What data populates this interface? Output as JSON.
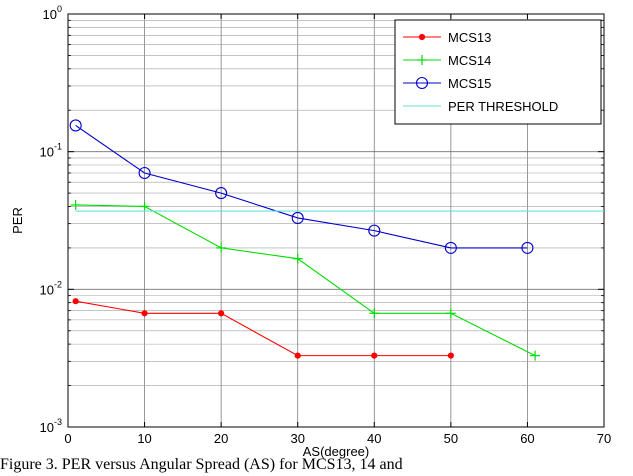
{
  "chart_data": {
    "type": "line",
    "xlabel": "AS(degree)",
    "ylabel": "PER",
    "xlim": [
      0,
      70
    ],
    "ylim": [
      0.001,
      1
    ],
    "yscale": "log",
    "grid": true,
    "legend_position": "top-right",
    "x_ticks": [
      "0",
      "10",
      "20",
      "30",
      "40",
      "50",
      "60",
      "70"
    ],
    "y_ticks": [
      {
        "base": "10",
        "exp": "0"
      },
      {
        "base": "10",
        "exp": "-1"
      },
      {
        "base": "10",
        "exp": "-2"
      },
      {
        "base": "10",
        "exp": "-3"
      }
    ],
    "series": [
      {
        "name": "MCS13",
        "color": "#ff0000",
        "marker": "dot",
        "x": [
          1,
          10,
          20,
          30,
          40,
          50
        ],
        "y": [
          0.0082,
          0.0067,
          0.0067,
          0.0033,
          0.0033,
          0.0033
        ]
      },
      {
        "name": "MCS14",
        "color": "#00dd00",
        "marker": "plus",
        "x": [
          1,
          10,
          20,
          30,
          40,
          50,
          61
        ],
        "y": [
          0.041,
          0.04,
          0.02,
          0.0167,
          0.0067,
          0.0067,
          0.0033
        ]
      },
      {
        "name": "MCS15",
        "color": "#0000cc",
        "marker": "circle",
        "x": [
          1,
          10,
          20,
          30,
          40,
          50,
          60
        ],
        "y": [
          0.155,
          0.07,
          0.05,
          0.033,
          0.0267,
          0.02,
          0.02
        ]
      },
      {
        "name": "PER THRESHOLD",
        "color": "#66e0e0",
        "marker": "none",
        "x": [
          1,
          70
        ],
        "y": [
          0.037,
          0.037
        ]
      }
    ]
  },
  "caption": "Figure 3. PER versus Angular Spread (AS) for MCS13, 14 and"
}
